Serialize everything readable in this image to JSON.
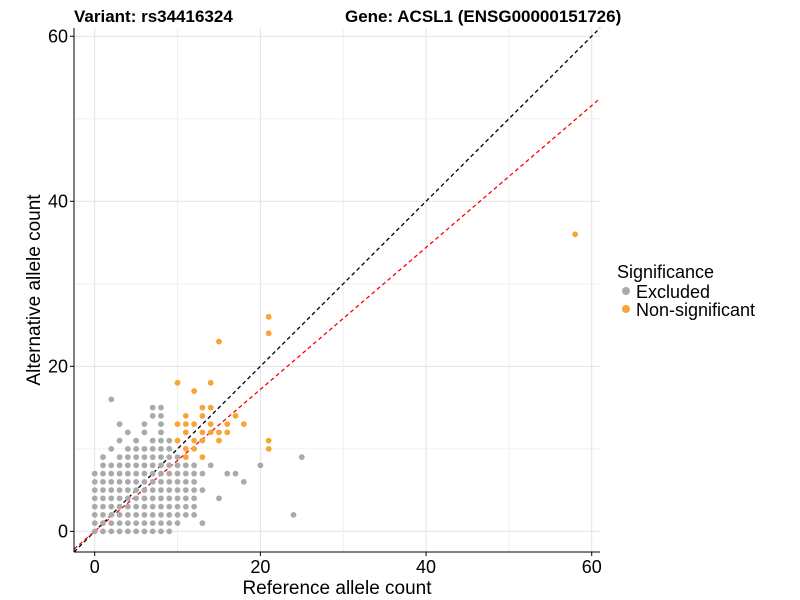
{
  "chart_data": {
    "type": "scatter",
    "title_left": "Variant: rs34416324",
    "title_right": "Gene: ACSL1 (ENSG00000151726)",
    "xlabel": "Reference allele count",
    "ylabel": "Alternative allele count",
    "xlim": [
      -2.5,
      61
    ],
    "ylim": [
      -2.5,
      61
    ],
    "xticks": [
      0,
      20,
      40,
      60
    ],
    "yticks": [
      0,
      20,
      40,
      60
    ],
    "grid": true,
    "legend_position": "right",
    "reference_lines": [
      {
        "slope": 1.0,
        "intercept": 0,
        "color": "#000000"
      },
      {
        "slope": 0.86,
        "intercept": 0,
        "color": "#ff0000"
      }
    ],
    "legend": {
      "title": "Significance",
      "entries": [
        {
          "name": "Excluded",
          "color": "#aaaaaa"
        },
        {
          "name": "Non-significant",
          "color": "#f7a536"
        }
      ]
    },
    "series": [
      {
        "name": "Excluded",
        "color": "#aaaaaa",
        "points": [
          [
            0,
            0
          ],
          [
            1,
            0
          ],
          [
            2,
            0
          ],
          [
            3,
            0
          ],
          [
            4,
            0
          ],
          [
            5,
            0
          ],
          [
            6,
            0
          ],
          [
            7,
            0
          ],
          [
            8,
            0
          ],
          [
            9,
            0
          ],
          [
            0,
            1
          ],
          [
            1,
            1
          ],
          [
            2,
            1
          ],
          [
            3,
            1
          ],
          [
            4,
            1
          ],
          [
            5,
            1
          ],
          [
            6,
            1
          ],
          [
            7,
            1
          ],
          [
            8,
            1
          ],
          [
            9,
            1
          ],
          [
            10,
            1
          ],
          [
            13,
            1
          ],
          [
            0,
            2
          ],
          [
            1,
            2
          ],
          [
            2,
            2
          ],
          [
            3,
            2
          ],
          [
            4,
            2
          ],
          [
            5,
            2
          ],
          [
            6,
            2
          ],
          [
            7,
            2
          ],
          [
            8,
            2
          ],
          [
            9,
            2
          ],
          [
            10,
            2
          ],
          [
            11,
            2
          ],
          [
            12,
            2
          ],
          [
            24,
            2
          ],
          [
            0,
            3
          ],
          [
            1,
            3
          ],
          [
            2,
            3
          ],
          [
            3,
            3
          ],
          [
            4,
            3
          ],
          [
            5,
            3
          ],
          [
            6,
            3
          ],
          [
            7,
            3
          ],
          [
            8,
            3
          ],
          [
            9,
            3
          ],
          [
            10,
            3
          ],
          [
            11,
            3
          ],
          [
            12,
            3
          ],
          [
            0,
            4
          ],
          [
            1,
            4
          ],
          [
            2,
            4
          ],
          [
            3,
            4
          ],
          [
            4,
            4
          ],
          [
            5,
            4
          ],
          [
            6,
            4
          ],
          [
            7,
            4
          ],
          [
            8,
            4
          ],
          [
            9,
            4
          ],
          [
            10,
            4
          ],
          [
            11,
            4
          ],
          [
            12,
            4
          ],
          [
            15,
            4
          ],
          [
            0,
            5
          ],
          [
            1,
            5
          ],
          [
            2,
            5
          ],
          [
            3,
            5
          ],
          [
            4,
            5
          ],
          [
            5,
            5
          ],
          [
            6,
            5
          ],
          [
            7,
            5
          ],
          [
            8,
            5
          ],
          [
            9,
            5
          ],
          [
            10,
            5
          ],
          [
            11,
            5
          ],
          [
            12,
            5
          ],
          [
            13,
            5
          ],
          [
            0,
            6
          ],
          [
            1,
            6
          ],
          [
            2,
            6
          ],
          [
            3,
            6
          ],
          [
            4,
            6
          ],
          [
            5,
            6
          ],
          [
            6,
            6
          ],
          [
            7,
            6
          ],
          [
            8,
            6
          ],
          [
            9,
            6
          ],
          [
            10,
            6
          ],
          [
            11,
            6
          ],
          [
            12,
            6
          ],
          [
            18,
            6
          ],
          [
            0,
            7
          ],
          [
            1,
            7
          ],
          [
            2,
            7
          ],
          [
            3,
            7
          ],
          [
            4,
            7
          ],
          [
            5,
            7
          ],
          [
            6,
            7
          ],
          [
            7,
            7
          ],
          [
            8,
            7
          ],
          [
            9,
            7
          ],
          [
            10,
            7
          ],
          [
            11,
            7
          ],
          [
            12,
            7
          ],
          [
            13,
            7
          ],
          [
            16,
            7
          ],
          [
            17,
            7
          ],
          [
            1,
            8
          ],
          [
            2,
            8
          ],
          [
            3,
            8
          ],
          [
            4,
            8
          ],
          [
            5,
            8
          ],
          [
            6,
            8
          ],
          [
            7,
            8
          ],
          [
            8,
            8
          ],
          [
            9,
            8
          ],
          [
            10,
            8
          ],
          [
            11,
            8
          ],
          [
            12,
            8
          ],
          [
            14,
            8
          ],
          [
            20,
            8
          ],
          [
            1,
            9
          ],
          [
            3,
            9
          ],
          [
            4,
            9
          ],
          [
            5,
            9
          ],
          [
            6,
            9
          ],
          [
            7,
            9
          ],
          [
            8,
            9
          ],
          [
            9,
            9
          ],
          [
            10,
            9
          ],
          [
            11,
            9
          ],
          [
            25,
            9
          ],
          [
            2,
            10
          ],
          [
            4,
            10
          ],
          [
            5,
            10
          ],
          [
            6,
            10
          ],
          [
            7,
            10
          ],
          [
            8,
            10
          ],
          [
            9,
            10
          ],
          [
            3,
            11
          ],
          [
            5,
            11
          ],
          [
            7,
            11
          ],
          [
            8,
            11
          ],
          [
            9,
            11
          ],
          [
            4,
            12
          ],
          [
            6,
            12
          ],
          [
            8,
            12
          ],
          [
            3,
            13
          ],
          [
            6,
            13
          ],
          [
            8,
            13
          ],
          [
            7,
            14
          ],
          [
            8,
            14
          ],
          [
            7,
            15
          ],
          [
            8,
            15
          ],
          [
            2,
            16
          ]
        ]
      },
      {
        "name": "Non-significant",
        "color": "#f7a536",
        "points": [
          [
            58,
            36
          ],
          [
            21,
            26
          ],
          [
            21,
            24
          ],
          [
            15,
            23
          ],
          [
            10,
            18
          ],
          [
            14,
            18
          ],
          [
            12,
            17
          ],
          [
            13,
            15
          ],
          [
            14,
            15
          ],
          [
            11,
            14
          ],
          [
            13,
            14
          ],
          [
            17,
            14
          ],
          [
            10,
            13
          ],
          [
            11,
            13
          ],
          [
            12,
            13
          ],
          [
            14,
            13
          ],
          [
            16,
            13
          ],
          [
            18,
            13
          ],
          [
            11,
            12
          ],
          [
            13,
            12
          ],
          [
            14,
            12
          ],
          [
            15,
            12
          ],
          [
            16,
            12
          ],
          [
            10,
            11
          ],
          [
            12,
            11
          ],
          [
            13,
            11
          ],
          [
            15,
            11
          ],
          [
            21,
            11
          ],
          [
            11,
            10
          ],
          [
            12,
            10
          ],
          [
            21,
            10
          ],
          [
            11,
            9
          ],
          [
            13,
            9
          ]
        ]
      }
    ]
  }
}
